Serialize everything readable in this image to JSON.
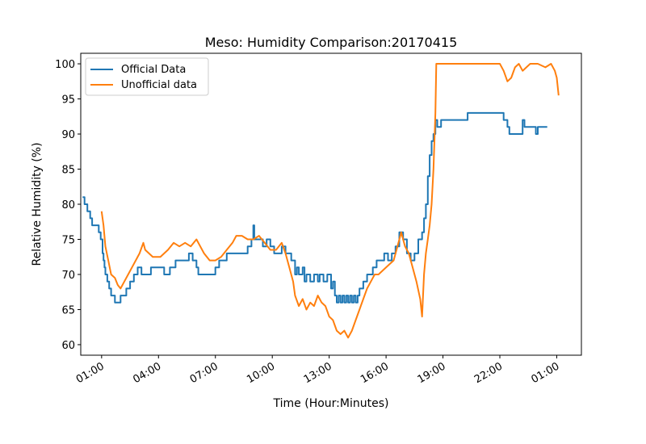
{
  "chart_data": {
    "type": "line",
    "title": "Meso: Humidity Comparison:20170415",
    "xlabel": "Time (Hour:Minutes)",
    "ylabel": "Relative Humidity (%)",
    "x_unit": "hours",
    "xlim": [
      -1.1,
      25.3
    ],
    "ylim": [
      58.5,
      101.5
    ],
    "x_ticks": [
      0,
      3,
      6,
      9,
      12,
      15,
      18,
      21,
      24
    ],
    "x_tick_labels": [
      "01:00",
      "04:00",
      "07:00",
      "10:00",
      "13:00",
      "16:00",
      "19:00",
      "22:00",
      "01:00"
    ],
    "y_ticks": [
      60,
      65,
      70,
      75,
      80,
      85,
      90,
      95,
      100
    ],
    "y_tick_labels": [
      "60",
      "65",
      "70",
      "75",
      "80",
      "85",
      "90",
      "95",
      "100"
    ],
    "grid": false,
    "legend_position": "top-left",
    "series": [
      {
        "name": "Official Data",
        "color": "#1f77b4",
        "style": "step",
        "points": [
          [
            -1.0,
            81
          ],
          [
            -0.9,
            80
          ],
          [
            -0.75,
            79
          ],
          [
            -0.6,
            78
          ],
          [
            -0.5,
            77
          ],
          [
            -0.15,
            76
          ],
          [
            -0.05,
            75
          ],
          [
            0.05,
            73
          ],
          [
            0.1,
            72
          ],
          [
            0.15,
            71
          ],
          [
            0.2,
            70
          ],
          [
            0.3,
            69
          ],
          [
            0.4,
            68
          ],
          [
            0.5,
            67
          ],
          [
            0.65,
            67
          ],
          [
            0.7,
            66
          ],
          [
            0.9,
            66
          ],
          [
            1.0,
            67
          ],
          [
            1.3,
            68
          ],
          [
            1.5,
            69
          ],
          [
            1.7,
            70
          ],
          [
            1.9,
            71
          ],
          [
            2.1,
            70
          ],
          [
            2.6,
            71
          ],
          [
            3.0,
            71
          ],
          [
            3.3,
            70
          ],
          [
            3.6,
            71
          ],
          [
            3.9,
            72
          ],
          [
            4.2,
            72
          ],
          [
            4.6,
            73
          ],
          [
            4.8,
            72
          ],
          [
            5.0,
            71
          ],
          [
            5.1,
            70
          ],
          [
            5.6,
            70
          ],
          [
            6.0,
            71
          ],
          [
            6.2,
            72
          ],
          [
            6.4,
            72
          ],
          [
            6.6,
            73
          ],
          [
            7.5,
            73
          ],
          [
            7.7,
            74
          ],
          [
            7.9,
            75
          ],
          [
            8.0,
            77
          ],
          [
            8.05,
            75
          ],
          [
            8.2,
            75
          ],
          [
            8.5,
            74
          ],
          [
            8.7,
            75
          ],
          [
            8.9,
            74
          ],
          [
            9.1,
            73
          ],
          [
            9.3,
            73
          ],
          [
            9.5,
            74
          ],
          [
            9.7,
            73
          ],
          [
            10.0,
            72
          ],
          [
            10.2,
            70
          ],
          [
            10.3,
            71
          ],
          [
            10.4,
            70
          ],
          [
            10.6,
            71
          ],
          [
            10.7,
            69
          ],
          [
            10.8,
            70
          ],
          [
            11.0,
            69
          ],
          [
            11.2,
            70
          ],
          [
            11.4,
            69
          ],
          [
            11.5,
            70
          ],
          [
            11.7,
            69
          ],
          [
            11.9,
            70
          ],
          [
            12.1,
            68
          ],
          [
            12.2,
            69
          ],
          [
            12.3,
            67
          ],
          [
            12.4,
            66
          ],
          [
            12.5,
            67
          ],
          [
            12.6,
            66
          ],
          [
            12.7,
            67
          ],
          [
            12.8,
            66
          ],
          [
            12.9,
            67
          ],
          [
            13.0,
            66
          ],
          [
            13.1,
            67
          ],
          [
            13.2,
            66
          ],
          [
            13.3,
            67
          ],
          [
            13.4,
            66
          ],
          [
            13.5,
            67
          ],
          [
            13.6,
            68
          ],
          [
            13.8,
            69
          ],
          [
            14.0,
            70
          ],
          [
            14.3,
            71
          ],
          [
            14.5,
            72
          ],
          [
            14.7,
            72
          ],
          [
            14.9,
            73
          ],
          [
            15.1,
            72
          ],
          [
            15.3,
            73
          ],
          [
            15.5,
            74
          ],
          [
            15.7,
            76
          ],
          [
            15.9,
            75
          ],
          [
            16.1,
            73
          ],
          [
            16.3,
            72
          ],
          [
            16.5,
            73
          ],
          [
            16.7,
            75
          ],
          [
            16.9,
            76
          ],
          [
            17.0,
            78
          ],
          [
            17.1,
            80
          ],
          [
            17.2,
            84
          ],
          [
            17.3,
            87
          ],
          [
            17.4,
            89
          ],
          [
            17.5,
            90
          ],
          [
            17.6,
            92
          ],
          [
            17.7,
            91
          ],
          [
            17.9,
            92
          ],
          [
            18.4,
            92
          ],
          [
            19.0,
            92
          ],
          [
            19.3,
            93
          ],
          [
            20.0,
            93
          ],
          [
            20.6,
            93
          ],
          [
            21.0,
            93
          ],
          [
            21.2,
            92
          ],
          [
            21.4,
            91
          ],
          [
            21.5,
            90
          ],
          [
            21.9,
            90
          ],
          [
            22.2,
            92
          ],
          [
            22.3,
            91
          ],
          [
            22.8,
            91
          ],
          [
            22.9,
            90
          ],
          [
            23.0,
            91
          ],
          [
            23.5,
            91
          ]
        ]
      },
      {
        "name": "Unofficial data",
        "color": "#ff7f0e",
        "style": "line",
        "points": [
          [
            0.0,
            79
          ],
          [
            0.1,
            77
          ],
          [
            0.2,
            74
          ],
          [
            0.35,
            72
          ],
          [
            0.5,
            70
          ],
          [
            0.7,
            69.5
          ],
          [
            0.85,
            68.5
          ],
          [
            1.0,
            68
          ],
          [
            1.2,
            69
          ],
          [
            1.4,
            70
          ],
          [
            1.6,
            71
          ],
          [
            1.8,
            72
          ],
          [
            2.0,
            73
          ],
          [
            2.2,
            74.5
          ],
          [
            2.3,
            73.5
          ],
          [
            2.5,
            73
          ],
          [
            2.7,
            72.5
          ],
          [
            2.9,
            72.5
          ],
          [
            3.1,
            72.5
          ],
          [
            3.3,
            73
          ],
          [
            3.5,
            73.5
          ],
          [
            3.8,
            74.5
          ],
          [
            4.1,
            74
          ],
          [
            4.4,
            74.5
          ],
          [
            4.7,
            74
          ],
          [
            5.0,
            75
          ],
          [
            5.2,
            74
          ],
          [
            5.4,
            73
          ],
          [
            5.7,
            72
          ],
          [
            6.0,
            72
          ],
          [
            6.3,
            72.5
          ],
          [
            6.6,
            73.5
          ],
          [
            6.9,
            74.5
          ],
          [
            7.1,
            75.5
          ],
          [
            7.4,
            75.5
          ],
          [
            7.7,
            75
          ],
          [
            8.0,
            75
          ],
          [
            8.3,
            75.5
          ],
          [
            8.6,
            74.5
          ],
          [
            8.9,
            73.5
          ],
          [
            9.2,
            73.5
          ],
          [
            9.5,
            74.5
          ],
          [
            9.7,
            73
          ],
          [
            9.9,
            71
          ],
          [
            10.1,
            69
          ],
          [
            10.2,
            67
          ],
          [
            10.4,
            65.5
          ],
          [
            10.6,
            66.5
          ],
          [
            10.8,
            65
          ],
          [
            11.0,
            66
          ],
          [
            11.2,
            65.5
          ],
          [
            11.4,
            67
          ],
          [
            11.6,
            66
          ],
          [
            11.8,
            65.5
          ],
          [
            12.0,
            64
          ],
          [
            12.2,
            63.5
          ],
          [
            12.4,
            62
          ],
          [
            12.6,
            61.5
          ],
          [
            12.8,
            62
          ],
          [
            13.0,
            61
          ],
          [
            13.2,
            62
          ],
          [
            13.4,
            63.5
          ],
          [
            13.6,
            65
          ],
          [
            13.8,
            66.5
          ],
          [
            14.0,
            68
          ],
          [
            14.2,
            69
          ],
          [
            14.4,
            70
          ],
          [
            14.6,
            70
          ],
          [
            14.8,
            70.5
          ],
          [
            15.0,
            71
          ],
          [
            15.2,
            71.5
          ],
          [
            15.4,
            72
          ],
          [
            15.6,
            74
          ],
          [
            15.8,
            76
          ],
          [
            15.9,
            75
          ],
          [
            16.0,
            74
          ],
          [
            16.2,
            73
          ],
          [
            16.4,
            71
          ],
          [
            16.6,
            69
          ],
          [
            16.8,
            66.5
          ],
          [
            16.9,
            64
          ],
          [
            17.0,
            70
          ],
          [
            17.1,
            73
          ],
          [
            17.2,
            75
          ],
          [
            17.3,
            77
          ],
          [
            17.4,
            80
          ],
          [
            17.5,
            85
          ],
          [
            17.6,
            93
          ],
          [
            17.65,
            100
          ],
          [
            18.0,
            100
          ],
          [
            19.0,
            100
          ],
          [
            20.0,
            100
          ],
          [
            20.5,
            100
          ],
          [
            21.0,
            100
          ],
          [
            21.2,
            99
          ],
          [
            21.4,
            97.5
          ],
          [
            21.6,
            98
          ],
          [
            21.8,
            99.5
          ],
          [
            22.0,
            100
          ],
          [
            22.2,
            99
          ],
          [
            22.4,
            99.5
          ],
          [
            22.6,
            100
          ],
          [
            23.0,
            100
          ],
          [
            23.4,
            99.5
          ],
          [
            23.7,
            100
          ],
          [
            23.9,
            99
          ],
          [
            24.0,
            98
          ],
          [
            24.1,
            95.5
          ]
        ]
      }
    ]
  }
}
